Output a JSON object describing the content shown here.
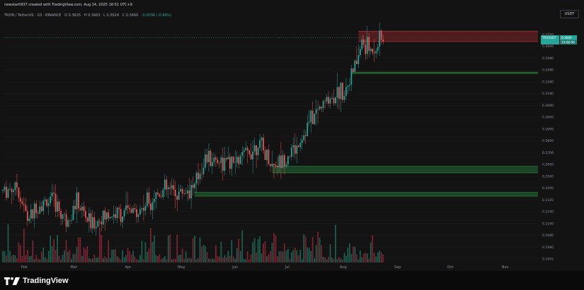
{
  "header": {
    "attribution": "newstar0937 created with TradingView.com, Aug 24, 2025 18:51 UTC+9",
    "symbol_title": "TRON / TetherUS · 1D · BINANCE",
    "open": "O 0.3625",
    "high": "H 0.3663",
    "low": "L 0.3624",
    "close": "C 0.3660",
    "change": "-0.0036 (-0.99%)",
    "currency": "USDT"
  },
  "price_tag": {
    "symbol": "TRXUSDT",
    "price": "0.3660",
    "countdown": "14:08:06"
  },
  "footer": {
    "brand": "TradingView"
  },
  "colors": {
    "up": "#26a69a",
    "down": "#ef5350",
    "vol_up": "#1e5f4f",
    "vol_down": "#7a2332",
    "support_zone": "#1d4d2a",
    "support_edge": "#2e8b3e",
    "resist_zone": "#5a1e22",
    "resist_edge": "#c0393f",
    "background": "#131313",
    "grid": "#1f1f1f"
  },
  "chart_data": {
    "type": "candlestick",
    "title": "TRON / TetherUS · 1D · BINANCE",
    "ylim": [
      0.193,
      0.376
    ],
    "y_ticks": [
      "0.3720",
      "0.3600",
      "0.3480",
      "0.3380",
      "0.3280",
      "0.3180",
      "0.3080",
      "0.3000",
      "0.2900",
      "0.2800",
      "0.2700",
      "0.2600",
      "0.2500",
      "0.2400",
      "0.2320",
      "0.2240",
      "0.2160",
      "0.2080",
      "0.1980",
      "0.1925"
    ],
    "x_ticks": [
      "Feb",
      "Mar",
      "Apr",
      "May",
      "Jun",
      "Jul",
      "Aug",
      "Sep",
      "Oct",
      "Nov"
    ],
    "start_date": "2025-01-20",
    "last_date": "2025-08-24",
    "zones": [
      {
        "kind": "resistance",
        "from": 0.363,
        "to": 0.371,
        "start": "2025-08-10"
      },
      {
        "kind": "support",
        "from": 0.3385,
        "to": 0.3395,
        "start": "2025-08-06"
      },
      {
        "kind": "support",
        "from": 0.262,
        "to": 0.267,
        "start": "2025-06-22"
      },
      {
        "kind": "support",
        "from": 0.244,
        "to": 0.247,
        "start": "2025-05-09"
      }
    ],
    "anchor_prices": [
      [
        "2025-01-20",
        0.248
      ],
      [
        "2025-01-28",
        0.252
      ],
      [
        "2025-02-03",
        0.226
      ],
      [
        "2025-02-10",
        0.238
      ],
      [
        "2025-02-17",
        0.241
      ],
      [
        "2025-02-25",
        0.226
      ],
      [
        "2025-03-03",
        0.239
      ],
      [
        "2025-03-11",
        0.222
      ],
      [
        "2025-03-19",
        0.228
      ],
      [
        "2025-03-27",
        0.231
      ],
      [
        "2025-04-07",
        0.232
      ],
      [
        "2025-04-15",
        0.244
      ],
      [
        "2025-04-22",
        0.249
      ],
      [
        "2025-05-01",
        0.247
      ],
      [
        "2025-05-09",
        0.252
      ],
      [
        "2025-05-15",
        0.274
      ],
      [
        "2025-05-22",
        0.272
      ],
      [
        "2025-05-30",
        0.268
      ],
      [
        "2025-06-08",
        0.277
      ],
      [
        "2025-06-14",
        0.285
      ],
      [
        "2025-06-22",
        0.268
      ],
      [
        "2025-06-28",
        0.272
      ],
      [
        "2025-07-06",
        0.282
      ],
      [
        "2025-07-14",
        0.303
      ],
      [
        "2025-07-21",
        0.315
      ],
      [
        "2025-07-27",
        0.322
      ],
      [
        "2025-08-02",
        0.326
      ],
      [
        "2025-08-08",
        0.343
      ],
      [
        "2025-08-12",
        0.362
      ],
      [
        "2025-08-17",
        0.356
      ],
      [
        "2025-08-24",
        0.366
      ]
    ]
  }
}
